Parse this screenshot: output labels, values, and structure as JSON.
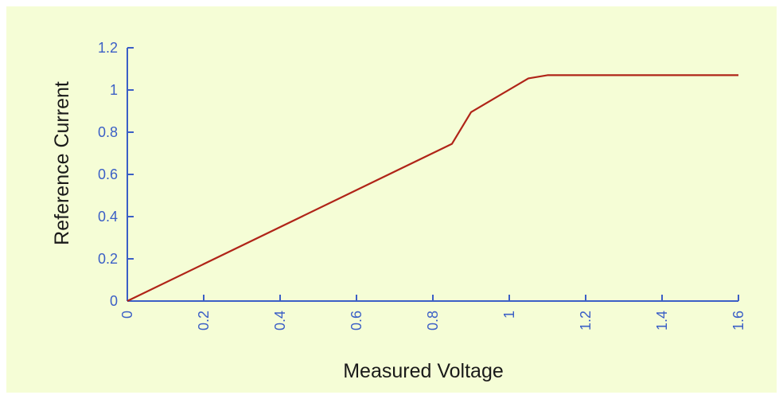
{
  "chart_data": {
    "type": "line",
    "xlabel": "Measured Voltage",
    "ylabel": "Reference Current",
    "xlim": [
      0,
      1.6
    ],
    "ylim": [
      0,
      1.2
    ],
    "xticks": [
      "0",
      "0.2",
      "0.4",
      "0.6",
      "0.8",
      "1",
      "1.2",
      "1.4",
      "1.6"
    ],
    "yticks": [
      "0",
      "0.2",
      "0.4",
      "0.6",
      "0.8",
      "1",
      "1.2"
    ],
    "grid": false,
    "series": [
      {
        "color": "#b02418",
        "x": [
          0,
          0.85,
          0.9,
          1.05,
          1.1,
          1.6
        ],
        "y": [
          0,
          0.745,
          0.895,
          1.055,
          1.07,
          1.07
        ]
      }
    ]
  },
  "colors": {
    "background": "#f5fdd6",
    "axis": "#3b5fc6",
    "tick_text": "#3b5fc6",
    "series": "#b02418"
  }
}
